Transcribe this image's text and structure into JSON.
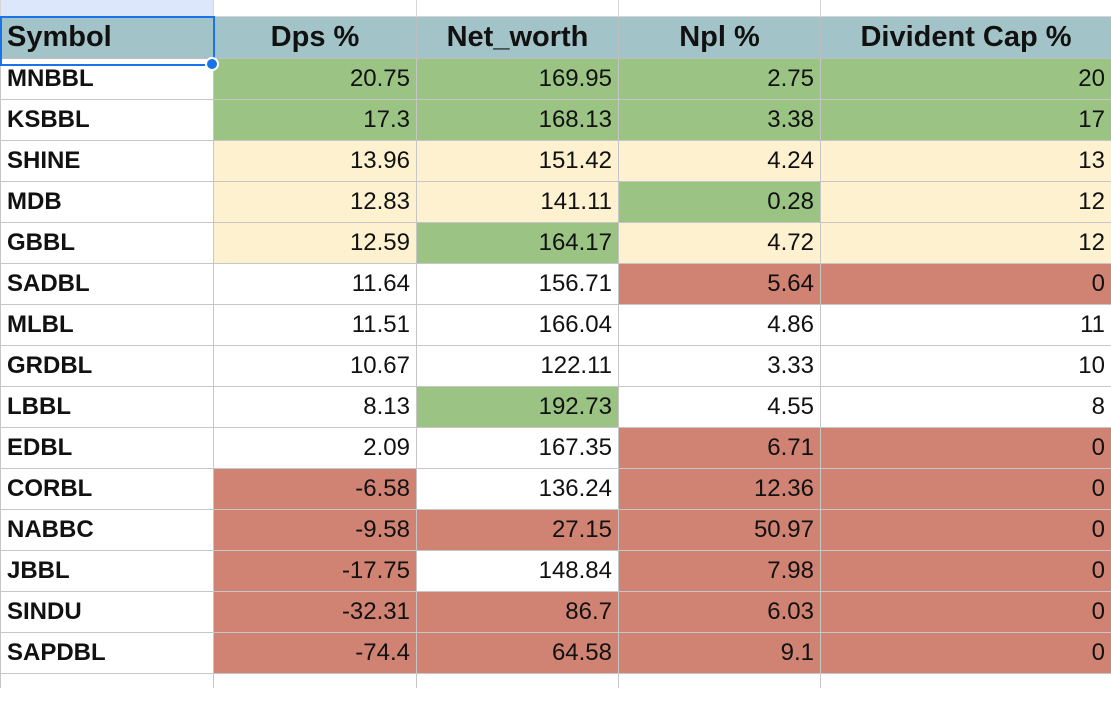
{
  "colors": {
    "header_bg": "#a2c4c9",
    "green": "#9bc484",
    "yellow": "#fdf1cf",
    "red": "#d08373",
    "white": "#ffffff",
    "selection": "#1a73e8"
  },
  "columns": [
    "Symbol",
    "Dps %",
    "Net_worth",
    "Npl %",
    "Divident Cap %"
  ],
  "rows": [
    {
      "symbol": "MNBBL",
      "dps": "20.75",
      "net_worth": "169.95",
      "npl": "2.75",
      "cap": "20",
      "fills": [
        "green",
        "green",
        "green",
        "green"
      ]
    },
    {
      "symbol": "KSBBL",
      "dps": "17.3",
      "net_worth": "168.13",
      "npl": "3.38",
      "cap": "17",
      "fills": [
        "green",
        "green",
        "green",
        "green"
      ]
    },
    {
      "symbol": "SHINE",
      "dps": "13.96",
      "net_worth": "151.42",
      "npl": "4.24",
      "cap": "13",
      "fills": [
        "yellow",
        "yellow",
        "yellow",
        "yellow"
      ]
    },
    {
      "symbol": "MDB",
      "dps": "12.83",
      "net_worth": "141.11",
      "npl": "0.28",
      "cap": "12",
      "fills": [
        "yellow",
        "yellow",
        "green",
        "yellow"
      ]
    },
    {
      "symbol": "GBBL",
      "dps": "12.59",
      "net_worth": "164.17",
      "npl": "4.72",
      "cap": "12",
      "fills": [
        "yellow",
        "green",
        "yellow",
        "yellow"
      ]
    },
    {
      "symbol": "SADBL",
      "dps": "11.64",
      "net_worth": "156.71",
      "npl": "5.64",
      "cap": "0",
      "fills": [
        "white",
        "white",
        "red",
        "red"
      ]
    },
    {
      "symbol": "MLBL",
      "dps": "11.51",
      "net_worth": "166.04",
      "npl": "4.86",
      "cap": "11",
      "fills": [
        "white",
        "white",
        "white",
        "white"
      ]
    },
    {
      "symbol": "GRDBL",
      "dps": "10.67",
      "net_worth": "122.11",
      "npl": "3.33",
      "cap": "10",
      "fills": [
        "white",
        "white",
        "white",
        "white"
      ]
    },
    {
      "symbol": "LBBL",
      "dps": "8.13",
      "net_worth": "192.73",
      "npl": "4.55",
      "cap": "8",
      "fills": [
        "white",
        "green",
        "white",
        "white"
      ]
    },
    {
      "symbol": "EDBL",
      "dps": "2.09",
      "net_worth": "167.35",
      "npl": "6.71",
      "cap": "0",
      "fills": [
        "white",
        "white",
        "red",
        "red"
      ]
    },
    {
      "symbol": "CORBL",
      "dps": "-6.58",
      "net_worth": "136.24",
      "npl": "12.36",
      "cap": "0",
      "fills": [
        "red",
        "white",
        "red",
        "red"
      ]
    },
    {
      "symbol": "NABBC",
      "dps": "-9.58",
      "net_worth": "27.15",
      "npl": "50.97",
      "cap": "0",
      "fills": [
        "red",
        "red",
        "red",
        "red"
      ]
    },
    {
      "symbol": "JBBL",
      "dps": "-17.75",
      "net_worth": "148.84",
      "npl": "7.98",
      "cap": "0",
      "fills": [
        "red",
        "white",
        "red",
        "red"
      ]
    },
    {
      "symbol": "SINDU",
      "dps": "-32.31",
      "net_worth": "86.7",
      "npl": "6.03",
      "cap": "0",
      "fills": [
        "red",
        "red",
        "red",
        "red"
      ]
    },
    {
      "symbol": "SAPDBL",
      "dps": "-74.4",
      "net_worth": "64.58",
      "npl": "9.1",
      "cap": "0",
      "fills": [
        "red",
        "red",
        "red",
        "red"
      ]
    }
  ]
}
